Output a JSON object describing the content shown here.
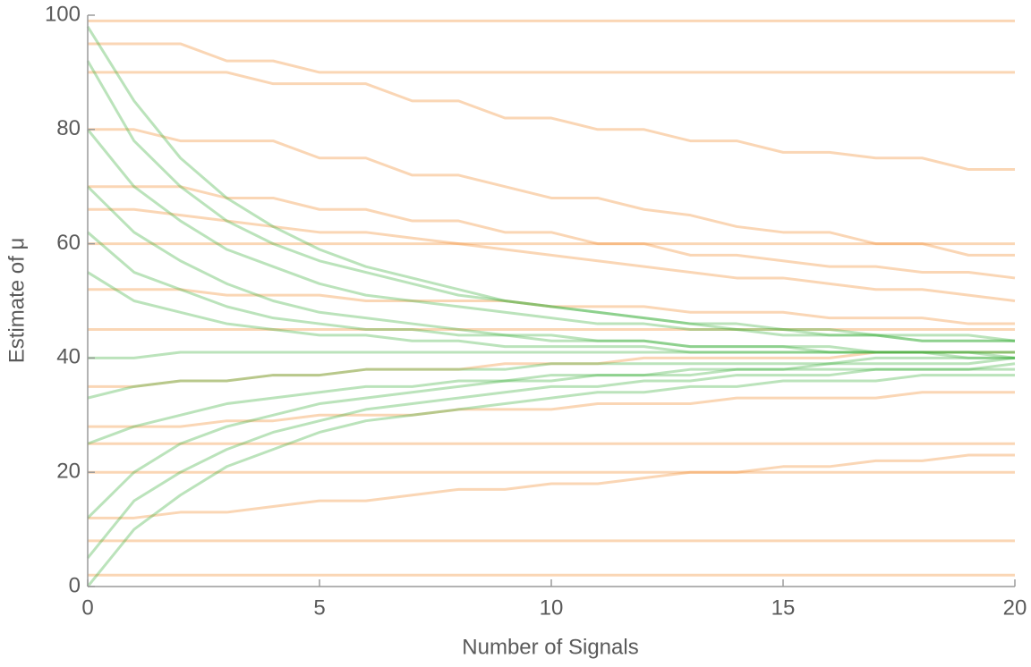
{
  "chart_data": {
    "type": "line",
    "x_label": "Number of Signals",
    "y_label": "Estimate of μ",
    "x": [
      0,
      1,
      2,
      3,
      4,
      5,
      6,
      7,
      8,
      9,
      10,
      11,
      12,
      13,
      14,
      15,
      16,
      17,
      18,
      19,
      20
    ],
    "xlim": [
      0,
      20
    ],
    "xticks": [
      0,
      5,
      10,
      15,
      20
    ],
    "ylim": [
      0,
      100
    ],
    "yticks": [
      0,
      20,
      40,
      60,
      80,
      100
    ],
    "series": [
      {
        "color": "#f08a2c",
        "values": [
          99,
          99,
          99,
          99,
          99,
          99,
          99,
          99,
          99,
          99,
          99,
          99,
          99,
          99,
          99,
          99,
          99,
          99,
          99,
          99,
          99
        ]
      },
      {
        "color": "#f08a2c",
        "values": [
          90,
          90,
          90,
          90,
          88,
          88,
          88,
          85,
          85,
          82,
          82,
          80,
          80,
          78,
          78,
          76,
          76,
          75,
          75,
          73,
          73
        ]
      },
      {
        "color": "#f08a2c",
        "values": [
          80,
          80,
          78,
          78,
          78,
          75,
          75,
          72,
          72,
          70,
          68,
          68,
          66,
          65,
          63,
          62,
          62,
          60,
          60,
          58,
          58
        ]
      },
      {
        "color": "#f08a2c",
        "values": [
          70,
          70,
          70,
          68,
          68,
          66,
          66,
          64,
          64,
          62,
          62,
          60,
          60,
          58,
          58,
          57,
          56,
          56,
          55,
          55,
          54
        ]
      },
      {
        "color": "#f08a2c",
        "values": [
          60,
          60,
          60,
          60,
          60,
          60,
          60,
          60,
          60,
          60,
          60,
          60,
          60,
          60,
          60,
          60,
          60,
          60,
          60,
          60,
          60
        ]
      },
      {
        "color": "#f08a2c",
        "values": [
          52,
          52,
          52,
          51,
          51,
          51,
          50,
          50,
          50,
          50,
          49,
          49,
          49,
          48,
          48,
          48,
          47,
          47,
          47,
          46,
          46
        ]
      },
      {
        "color": "#f08a2c",
        "values": [
          45,
          45,
          45,
          45,
          45,
          45,
          45,
          45,
          45,
          45,
          45,
          45,
          45,
          45,
          45,
          45,
          45,
          45,
          45,
          45,
          45
        ]
      },
      {
        "color": "#f08a2c",
        "values": [
          35,
          35,
          36,
          36,
          37,
          37,
          38,
          38,
          38,
          39,
          39,
          39,
          40,
          40,
          40,
          40,
          40,
          41,
          41,
          41,
          41
        ]
      },
      {
        "color": "#f08a2c",
        "values": [
          28,
          28,
          28,
          29,
          29,
          30,
          30,
          30,
          31,
          31,
          31,
          32,
          32,
          32,
          33,
          33,
          33,
          33,
          34,
          34,
          34
        ]
      },
      {
        "color": "#f08a2c",
        "values": [
          20,
          20,
          20,
          20,
          20,
          20,
          20,
          20,
          20,
          20,
          20,
          20,
          20,
          20,
          20,
          20,
          20,
          20,
          20,
          20,
          20
        ]
      },
      {
        "color": "#f08a2c",
        "values": [
          12,
          12,
          13,
          13,
          14,
          15,
          15,
          16,
          17,
          17,
          18,
          18,
          19,
          20,
          20,
          21,
          21,
          22,
          22,
          23,
          23
        ]
      },
      {
        "color": "#f08a2c",
        "values": [
          8,
          8,
          8,
          8,
          8,
          8,
          8,
          8,
          8,
          8,
          8,
          8,
          8,
          8,
          8,
          8,
          8,
          8,
          8,
          8,
          8
        ]
      },
      {
        "color": "#f08a2c",
        "values": [
          2,
          2,
          2,
          2,
          2,
          2,
          2,
          2,
          2,
          2,
          2,
          2,
          2,
          2,
          2,
          2,
          2,
          2,
          2,
          2,
          2
        ]
      },
      {
        "color": "#f08a2c",
        "values": [
          95,
          95,
          95,
          92,
          92,
          90,
          90,
          90,
          90,
          90,
          90,
          90,
          90,
          90,
          90,
          90,
          90,
          90,
          90,
          90,
          90
        ]
      },
      {
        "color": "#f08a2c",
        "values": [
          66,
          66,
          65,
          64,
          63,
          62,
          62,
          61,
          60,
          59,
          58,
          57,
          56,
          55,
          54,
          54,
          53,
          52,
          52,
          51,
          50
        ]
      },
      {
        "color": "#f08a2c",
        "values": [
          25,
          25,
          25,
          25,
          25,
          25,
          25,
          25,
          25,
          25,
          25,
          25,
          25,
          25,
          25,
          25,
          25,
          25,
          25,
          25,
          25
        ]
      },
      {
        "color": "#3cb03c",
        "values": [
          98,
          85,
          75,
          68,
          63,
          59,
          56,
          54,
          52,
          50,
          49,
          48,
          47,
          46,
          46,
          45,
          45,
          44,
          44,
          44,
          43
        ]
      },
      {
        "color": "#3cb03c",
        "values": [
          92,
          78,
          70,
          64,
          60,
          57,
          55,
          53,
          51,
          50,
          49,
          48,
          47,
          46,
          45,
          45,
          44,
          44,
          43,
          43,
          43
        ]
      },
      {
        "color": "#3cb03c",
        "values": [
          5,
          15,
          20,
          24,
          27,
          29,
          31,
          32,
          33,
          34,
          35,
          35,
          36,
          36,
          37,
          37,
          37,
          38,
          38,
          38,
          38
        ]
      },
      {
        "color": "#3cb03c",
        "values": [
          12,
          20,
          25,
          28,
          30,
          32,
          33,
          34,
          35,
          36,
          36,
          37,
          37,
          38,
          38,
          38,
          39,
          39,
          39,
          39,
          40
        ]
      },
      {
        "color": "#3cb03c",
        "values": [
          70,
          62,
          57,
          53,
          50,
          48,
          47,
          46,
          45,
          44,
          44,
          43,
          43,
          42,
          42,
          42,
          41,
          41,
          41,
          41,
          40
        ]
      },
      {
        "color": "#3cb03c",
        "values": [
          40,
          40,
          41,
          41,
          41,
          41,
          41,
          41,
          41,
          41,
          41,
          41,
          41,
          41,
          41,
          41,
          41,
          41,
          41,
          41,
          41
        ]
      },
      {
        "color": "#3cb03c",
        "values": [
          55,
          50,
          48,
          46,
          45,
          44,
          44,
          43,
          43,
          42,
          42,
          42,
          42,
          41,
          41,
          41,
          41,
          41,
          41,
          40,
          40
        ]
      },
      {
        "color": "#3cb03c",
        "values": [
          25,
          28,
          30,
          32,
          33,
          34,
          35,
          35,
          36,
          36,
          37,
          37,
          37,
          37,
          38,
          38,
          38,
          38,
          38,
          38,
          39
        ]
      },
      {
        "color": "#3cb03c",
        "values": [
          80,
          70,
          64,
          59,
          56,
          53,
          51,
          50,
          49,
          48,
          47,
          46,
          46,
          45,
          45,
          44,
          44,
          44,
          43,
          43,
          43
        ]
      },
      {
        "color": "#3cb03c",
        "values": [
          0,
          10,
          16,
          21,
          24,
          27,
          29,
          30,
          31,
          32,
          33,
          34,
          34,
          35,
          35,
          36,
          36,
          36,
          37,
          37,
          37
        ]
      },
      {
        "color": "#3cb03c",
        "values": [
          62,
          55,
          52,
          49,
          47,
          46,
          45,
          45,
          44,
          44,
          43,
          43,
          43,
          42,
          42,
          42,
          42,
          41,
          41,
          41,
          41
        ]
      },
      {
        "color": "#3cb03c",
        "values": [
          33,
          35,
          36,
          36,
          37,
          37,
          38,
          38,
          38,
          38,
          39,
          39,
          39,
          39,
          39,
          39,
          39,
          40,
          40,
          40,
          40
        ]
      }
    ]
  }
}
